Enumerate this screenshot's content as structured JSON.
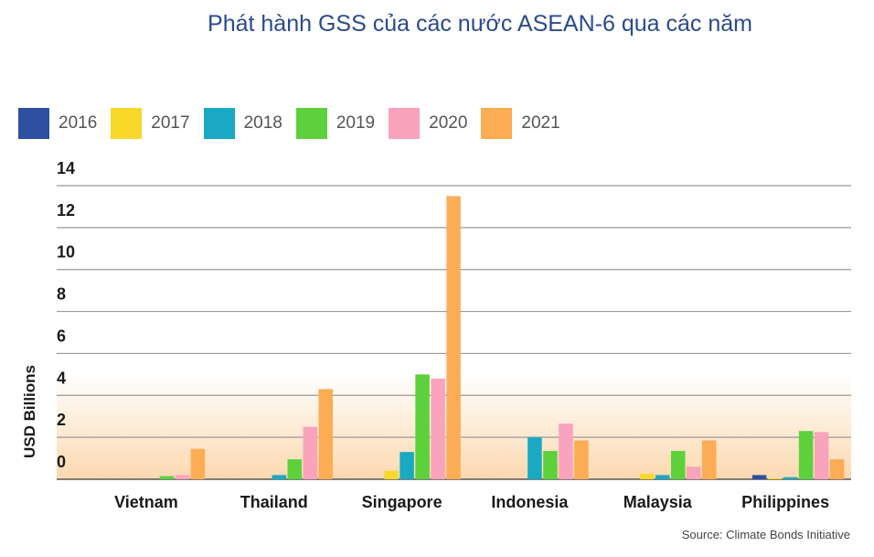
{
  "chart_data": {
    "type": "bar",
    "title": "Phát hành GSS của các nước ASEAN-6 qua các năm",
    "ylabel": "USD Billions",
    "xlabel": "",
    "source": "Source: Climate Bonds Initiative",
    "categories": [
      "Vietnam",
      "Thailand",
      "Singapore",
      "Indonesia",
      "Malaysia",
      "Philippines"
    ],
    "y_tick_labels": [
      "0",
      "2",
      "4",
      "6",
      "8",
      "10",
      "12",
      "14"
    ],
    "ylim": [
      0,
      14
    ],
    "legend_position": "top-left",
    "grid": true,
    "series": [
      {
        "name": "2016",
        "color": "#2e4fa2",
        "values": [
          0,
          0,
          0,
          0,
          0,
          0.2
        ]
      },
      {
        "name": "2017",
        "color": "#f7d82b",
        "values": [
          0,
          0,
          0.4,
          0,
          0.25,
          0.05
        ]
      },
      {
        "name": "2018",
        "color": "#1aa9c2",
        "values": [
          0,
          0.2,
          1.3,
          2.0,
          0.2,
          0.1
        ]
      },
      {
        "name": "2019",
        "color": "#5dd13c",
        "values": [
          0.15,
          0.95,
          5.0,
          1.35,
          1.35,
          2.3
        ]
      },
      {
        "name": "2020",
        "color": "#f9a3bd",
        "values": [
          0.2,
          2.5,
          4.8,
          2.65,
          0.6,
          2.25
        ]
      },
      {
        "name": "2021",
        "color": "#fcac55",
        "values": [
          1.45,
          4.3,
          13.5,
          1.85,
          1.85,
          0.95
        ]
      }
    ]
  }
}
